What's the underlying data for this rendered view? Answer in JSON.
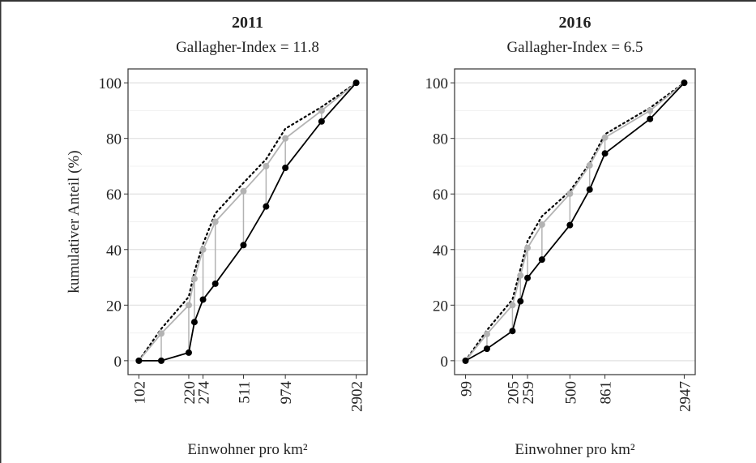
{
  "chart_data": [
    {
      "type": "line",
      "title": "2011",
      "subtitle": "Gallagher-Index = 11.8",
      "ylabel": "kumulativer Anteil (%)",
      "xlabel": "Einwohner pro km²",
      "xscale": "log",
      "xlim": [
        86.3,
        3430
      ],
      "ylim": [
        -5,
        105
      ],
      "xticks": [
        102,
        220,
        274,
        511,
        974,
        2902
      ],
      "yticks": [
        0,
        20,
        40,
        60,
        80,
        100
      ],
      "yminor": [
        10,
        30,
        50,
        70,
        90
      ],
      "grid": "y",
      "droplines": true,
      "x": [
        102,
        144,
        220,
        240,
        274,
        331,
        511,
        724,
        974,
        1702,
        2902
      ],
      "series": [
        {
          "color": "#000000",
          "dash": "dotted",
          "markers": false,
          "values": [
            0,
            11.5,
            23,
            32,
            42,
            53,
            64,
            72.5,
            83.5,
            91.3,
            100
          ]
        },
        {
          "color": "#b3b3b3",
          "dash": "solid",
          "markers": true,
          "values": [
            0,
            9.8,
            20,
            29.5,
            40,
            50,
            61,
            70,
            80,
            90,
            100
          ]
        },
        {
          "color": "#000000",
          "dash": "solid",
          "markers": true,
          "values": [
            0,
            0,
            2.9,
            13.9,
            22,
            27.7,
            41.6,
            55.5,
            69.4,
            86.1,
            100
          ]
        }
      ]
    },
    {
      "type": "line",
      "title": "2016",
      "subtitle": "Gallagher-Index = 6.5",
      "xlabel": "Einwohner pro km²",
      "xscale": "log",
      "xlim": [
        83.5,
        3495
      ],
      "ylim": [
        -5,
        105
      ],
      "xticks": [
        99,
        205,
        259,
        500,
        861,
        2947
      ],
      "yticks": [
        0,
        20,
        40,
        60,
        80,
        100
      ],
      "yminor": [
        10,
        30,
        50,
        70,
        90
      ],
      "grid": "y",
      "droplines": true,
      "x": [
        99,
        138,
        205,
        232,
        259,
        324,
        500,
        679,
        861,
        1733,
        2947
      ],
      "series": [
        {
          "color": "#000000",
          "dash": "dotted",
          "markers": false,
          "values": [
            0,
            11,
            22,
            33,
            43,
            52,
            61,
            71,
            81.5,
            91,
            100
          ]
        },
        {
          "color": "#b3b3b3",
          "dash": "solid",
          "markers": true,
          "values": [
            0,
            9.6,
            20,
            30.7,
            40.6,
            49,
            60.1,
            70.3,
            80.3,
            90,
            100
          ]
        },
        {
          "color": "#000000",
          "dash": "solid",
          "markers": true,
          "values": [
            0,
            4.3,
            10.7,
            21.4,
            29.8,
            36.4,
            48.8,
            61.6,
            74.6,
            87,
            100
          ]
        }
      ]
    }
  ]
}
